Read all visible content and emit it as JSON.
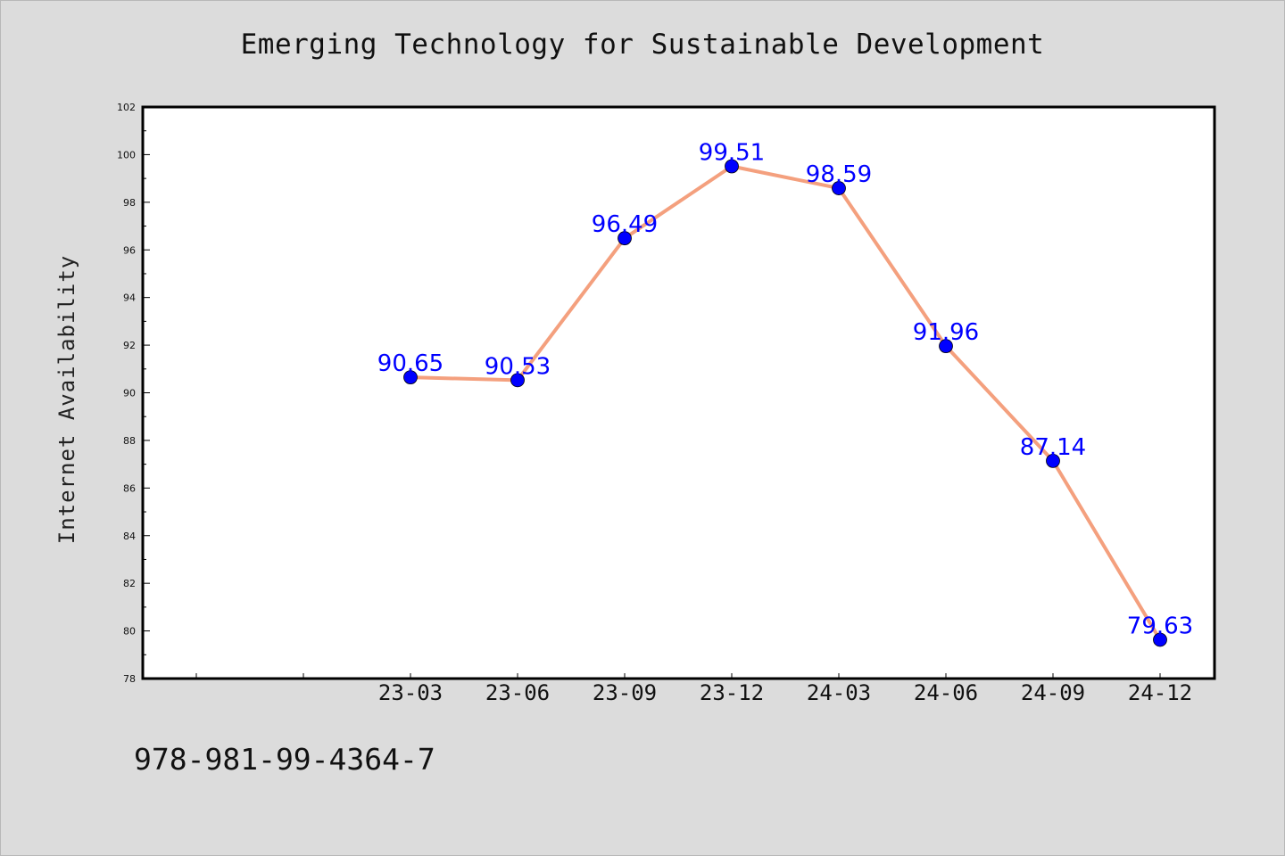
{
  "chart_data": {
    "type": "line",
    "title": "Emerging Technology for Sustainable Development",
    "xlabel": "",
    "ylabel": "Internet Availability",
    "categories": [
      "23-03",
      "23-06",
      "23-09",
      "23-12",
      "24-03",
      "24-06",
      "24-09",
      "24-12"
    ],
    "series": [
      {
        "values": [
          90.65,
          90.53,
          96.49,
          99.51,
          98.59,
          91.96,
          87.14,
          79.63
        ],
        "labels": [
          "90.65",
          "90.53",
          "96.49",
          "99.51",
          "98.59",
          "91.96",
          "87.14",
          "79.63"
        ]
      }
    ],
    "ylim": [
      78,
      102
    ],
    "y_ticks": [
      "78",
      "80",
      "82",
      "84",
      "86",
      "88",
      "90",
      "92",
      "94",
      "96",
      "98",
      "100",
      "102"
    ],
    "grid": false,
    "legend": "none",
    "colors": {
      "line": "#f4a07e",
      "marker": "#0000ff",
      "data_label": "#0000ff",
      "plot_background": "#ffffff",
      "figure_background": "#dcdcdc"
    }
  },
  "footer": {
    "code": "978-981-99-4364-7"
  }
}
